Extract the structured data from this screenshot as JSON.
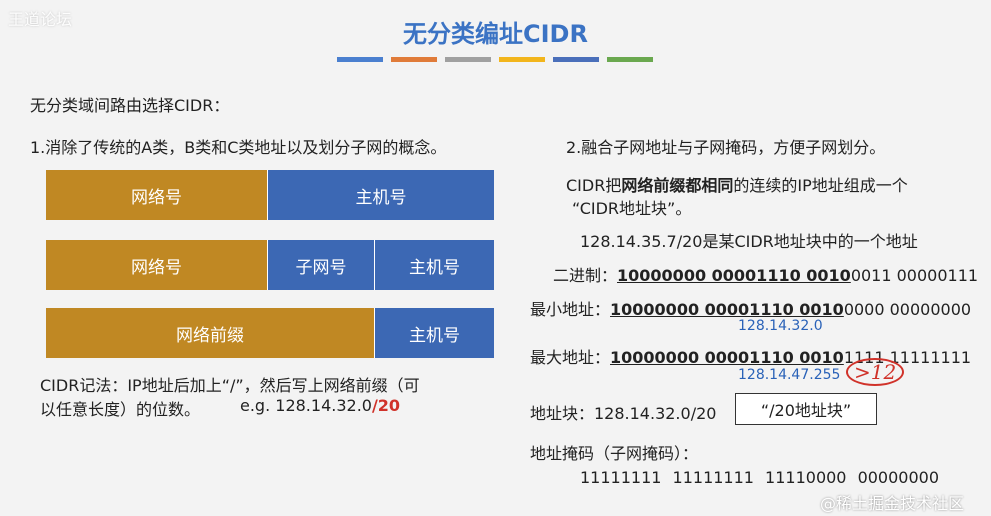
{
  "watermark_top": "王道论坛",
  "title": "无分类编址CIDR",
  "title_bar_colors": [
    "#4a7fcf",
    "#e07b39",
    "#a0a0a0",
    "#f2b51b",
    "#4a6fba",
    "#6aa84f"
  ],
  "left": {
    "heading": "无分类域间路由选择CIDR：",
    "point1": "1.消除了传统的A类，B类和C类地址以及划分子网的概念。",
    "row1": {
      "network": "网络号",
      "host": "主机号"
    },
    "row2": {
      "network": "网络号",
      "subnet": "子网号",
      "host": "主机号"
    },
    "row3": {
      "prefix": "网络前缀",
      "host": "主机号"
    },
    "notation_line1": "CIDR记法：IP地址后加上“/”，然后写上网络前缀（可",
    "notation_line2": "以任意长度）的位数。",
    "example_prefix": "e.g. 128.14.32.0",
    "example_suffix": "/20"
  },
  "right": {
    "point2": "2.融合子网地址与子网掩码，方便子网划分。",
    "cidr_desc1_a": "CIDR把",
    "cidr_desc1_b": "网络前缀都相同",
    "cidr_desc1_c": "的连续的IP地址组成一个",
    "cidr_desc2": "“CIDR地址块”。",
    "example": "128.14.35.7/20是某CIDR地址块中的一个地址",
    "binary_label": "二进制：",
    "binary_ul": "10000000 00001110 0010",
    "binary_rest": "0011 00000111",
    "min_label": "最小地址：",
    "min_ul": "10000000 00001110 0010",
    "min_rest": "0000 00000000",
    "min_dec": "128.14.32.0",
    "max_label": "最大地址：",
    "max_ul": "10000000 00001110 0010",
    "max_rest": "1111 11111111",
    "max_dec": "128.14.47.255",
    "annotation": ">12",
    "block_label": "地址块：128.14.32.0/20",
    "block_box": "“/20地址块”",
    "mask_label": "地址掩码（子网掩码）：",
    "mask_value": "11111111 11111111 11110000 00000000"
  },
  "colors": {
    "orange": "#c08823",
    "blue": "#3c68b4"
  },
  "watermark_bottom": "@稀土掘金技术社区"
}
